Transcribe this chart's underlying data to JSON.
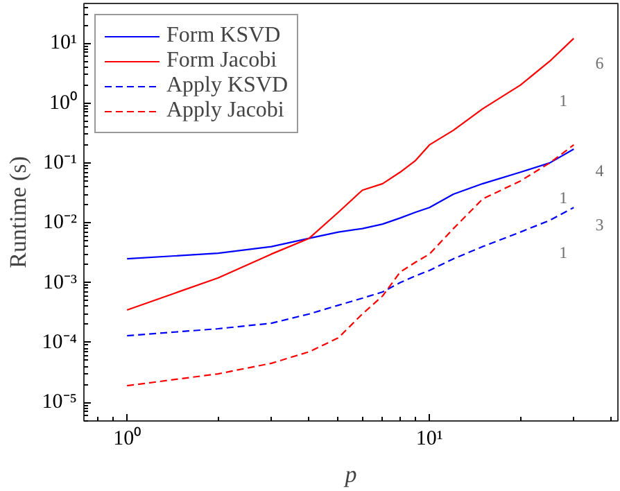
{
  "chart_data": {
    "type": "line",
    "xlabel": "p",
    "ylabel": "Runtime (s)",
    "log": "xy",
    "legend": "top left",
    "grid": false,
    "xlim": [
      0.72,
      42
    ],
    "ylim": [
      4.9e-06,
      46
    ],
    "xticks": [
      {
        "value": 1,
        "label": "10⁰"
      },
      {
        "value": 10,
        "label": "10¹"
      }
    ],
    "yticks": [
      {
        "value": 1e-05,
        "label": "10⁻⁵"
      },
      {
        "value": 0.0001,
        "label": "10⁻⁴"
      },
      {
        "value": 0.001,
        "label": "10⁻³"
      },
      {
        "value": 0.01,
        "label": "10⁻²"
      },
      {
        "value": 0.1,
        "label": "10⁻¹"
      },
      {
        "value": 1,
        "label": "10⁰"
      },
      {
        "value": 10,
        "label": "10¹"
      }
    ],
    "x": [
      1,
      2,
      3,
      4,
      5,
      6,
      7,
      8,
      9,
      10,
      12,
      15,
      20,
      25,
      30
    ],
    "series": [
      {
        "name": "Form KSVD",
        "color": "#0000ff",
        "line_style": "solid",
        "values": [
          0.0025,
          0.0031,
          0.004,
          0.0055,
          0.007,
          0.008,
          0.0095,
          0.012,
          0.015,
          0.018,
          0.03,
          0.045,
          0.07,
          0.1,
          0.17
        ]
      },
      {
        "name": "Form Jacobi",
        "color": "#ff0000",
        "line_style": "solid",
        "values": [
          0.00035,
          0.0012,
          0.003,
          0.0055,
          0.015,
          0.035,
          0.045,
          0.07,
          0.11,
          0.2,
          0.35,
          0.8,
          2,
          5,
          12
        ]
      },
      {
        "name": "Apply KSVD",
        "color": "#0000ff",
        "line_style": "dashed",
        "values": [
          0.00013,
          0.00017,
          0.00021,
          0.0003,
          0.00042,
          0.00055,
          0.0007,
          0.001,
          0.0013,
          0.0016,
          0.0025,
          0.004,
          0.007,
          0.011,
          0.018
        ]
      },
      {
        "name": "Apply Jacobi",
        "color": "#ff0000",
        "line_style": "dashed",
        "values": [
          1.9e-05,
          3e-05,
          4.5e-05,
          7e-05,
          0.00012,
          0.0003,
          0.0006,
          0.0015,
          0.0022,
          0.003,
          0.008,
          0.025,
          0.05,
          0.1,
          0.2
        ]
      }
    ],
    "annotations": [
      "6",
      "1",
      "4",
      "1",
      "3",
      "1"
    ]
  }
}
